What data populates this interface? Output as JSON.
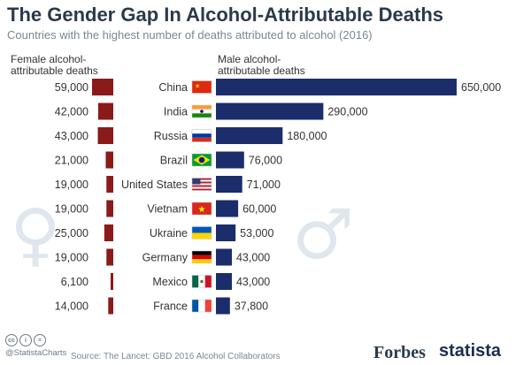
{
  "title": "The Gender Gap In Alcohol-Attributable Deaths",
  "subtitle": "Countries with the highest number of deaths attributed to alcohol (2016)",
  "female_header": "Female alcohol-\nattributable deaths",
  "male_header": "Male alcohol-\nattributable deaths",
  "colors": {
    "female": "#8b1a1a",
    "male": "#1c2d6b",
    "symbol": "#dfe6ee"
  },
  "female_symbol": "♀",
  "male_symbol": "♂",
  "chart_data": {
    "type": "bar",
    "categories": [
      "China",
      "India",
      "Russia",
      "Brazil",
      "United States",
      "Vietnam",
      "Ukraine",
      "Germany",
      "Mexico",
      "France"
    ],
    "series": [
      {
        "name": "Female alcohol-attributable deaths",
        "values": [
          59000,
          42000,
          43000,
          21000,
          19000,
          19000,
          25000,
          19000,
          6100,
          14000
        ]
      },
      {
        "name": "Male alcohol-attributable deaths",
        "values": [
          650000,
          290000,
          180000,
          76000,
          71000,
          60000,
          53000,
          43000,
          43000,
          37800
        ]
      }
    ],
    "labels_female": [
      "59,000",
      "42,000",
      "43,000",
      "21,000",
      "19,000",
      "19,000",
      "25,000",
      "19,000",
      "6,100",
      "14,000"
    ],
    "labels_male": [
      "650,000",
      "290,000",
      "180,000",
      "76,000",
      "71,000",
      "60,000",
      "53,000",
      "43,000",
      "43,000",
      "37,800"
    ],
    "flags": [
      "china-flag-icon",
      "india-flag-icon",
      "russia-flag-icon",
      "brazil-flag-icon",
      "usa-flag-icon",
      "vietnam-flag-icon",
      "ukraine-flag-icon",
      "germany-flag-icon",
      "mexico-flag-icon",
      "france-flag-icon"
    ]
  },
  "footer": {
    "handle": "@StatistaCharts",
    "source": "Source: The Lancet: GBD 2016 Alcohol Collaborators",
    "forbes": "Forbes",
    "statista": "statista",
    "cc_icons": [
      "cc",
      "i",
      "="
    ]
  }
}
